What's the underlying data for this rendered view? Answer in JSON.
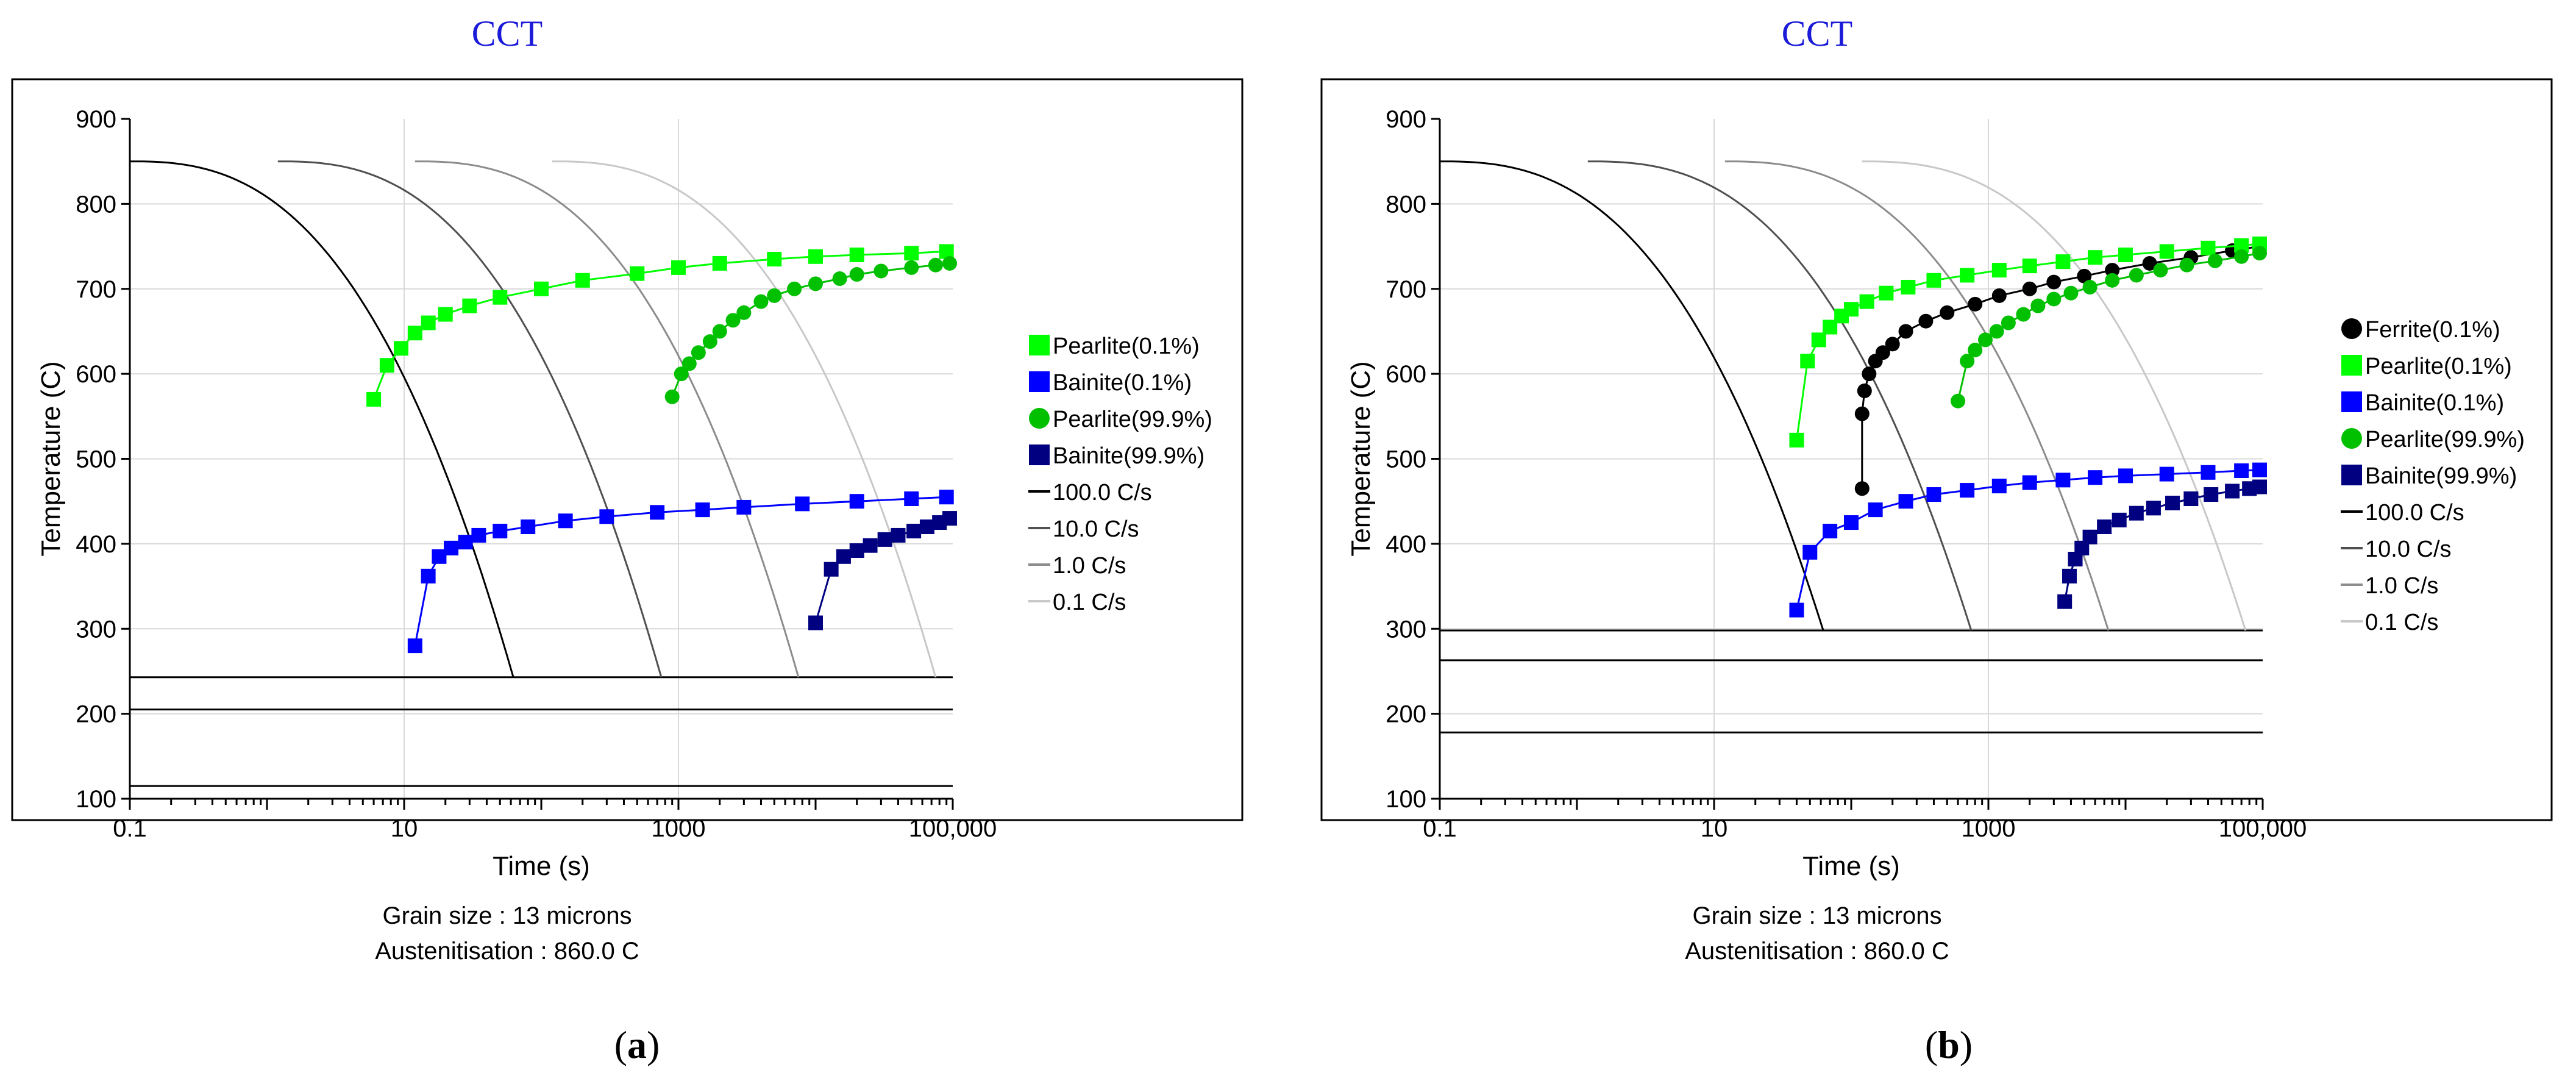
{
  "chart_data": [
    {
      "type": "line",
      "panel_label": "a",
      "title": "CCT",
      "xlabel": "Time (s)",
      "ylabel": "Temperature (C)",
      "x_scale": "log",
      "xlim": [
        0.1,
        100000
      ],
      "ylim": [
        100,
        900
      ],
      "x_ticks": [
        {
          "value": 0.1,
          "label": "0.1"
        },
        {
          "value": 10,
          "label": "10"
        },
        {
          "value": 1000,
          "label": "1000"
        },
        {
          "value": 100000,
          "label": "100,000"
        }
      ],
      "y_ticks": [
        {
          "value": 100,
          "label": "100"
        },
        {
          "value": 200,
          "label": "200"
        },
        {
          "value": 300,
          "label": "300"
        },
        {
          "value": 400,
          "label": "400"
        },
        {
          "value": 500,
          "label": "500"
        },
        {
          "value": 600,
          "label": "600"
        },
        {
          "value": 700,
          "label": "700"
        },
        {
          "value": 800,
          "label": "800"
        },
        {
          "value": 900,
          "label": "900"
        }
      ],
      "grid": true,
      "legend_position": "right",
      "footer": [
        "Grain size : 13 microns",
        "Austenitisation : 860.0 C"
      ],
      "transformation_series": [
        {
          "name": "Pearlite(0.1%)",
          "color": "#00ff00",
          "marker": "square",
          "x": [
            6,
            7.5,
            9.5,
            12,
            15,
            20,
            30,
            50,
            100,
            200,
            500,
            1000,
            2000,
            5000,
            10000,
            20000,
            50000,
            90000
          ],
          "y": [
            570,
            610,
            630,
            648,
            660,
            670,
            680,
            690,
            700,
            710,
            718,
            725,
            730,
            735,
            738,
            740,
            742,
            744
          ]
        },
        {
          "name": "Bainite(0.1%)",
          "color": "#0000ff",
          "marker": "square",
          "x": [
            12,
            15,
            18,
            22,
            28,
            35,
            50,
            80,
            150,
            300,
            700,
            1500,
            3000,
            8000,
            20000,
            50000,
            90000
          ],
          "y": [
            280,
            362,
            385,
            395,
            402,
            410,
            415,
            420,
            427,
            432,
            437,
            440,
            443,
            447,
            450,
            453,
            455
          ]
        },
        {
          "name": "Pearlite(99.9%)",
          "color": "#00c000",
          "marker": "circle",
          "x": [
            900,
            1050,
            1200,
            1400,
            1700,
            2000,
            2500,
            3000,
            4000,
            5000,
            7000,
            10000,
            15000,
            20000,
            30000,
            50000,
            75000,
            95000
          ],
          "y": [
            573,
            600,
            612,
            625,
            638,
            650,
            663,
            672,
            685,
            692,
            700,
            706,
            712,
            717,
            721,
            725,
            728,
            730
          ]
        },
        {
          "name": "Bainite(99.9%)",
          "color": "#000080",
          "marker": "square",
          "x": [
            10000,
            13000,
            16000,
            20000,
            25000,
            32000,
            40000,
            52000,
            65000,
            80000,
            95000
          ],
          "y": [
            307,
            370,
            385,
            392,
            398,
            405,
            410,
            415,
            420,
            425,
            430
          ]
        }
      ],
      "cooling_rates": [
        {
          "name": "100.0 C/s",
          "color": "#000000",
          "start_time": 0.1
        },
        {
          "name": "10.0 C/s",
          "color": "#505050",
          "start_time": 1.2
        },
        {
          "name": "1.0 C/s",
          "color": "#8c8c8c",
          "start_time": 12
        },
        {
          "name": "0.1 C/s",
          "color": "#c8c8c8",
          "start_time": 120
        }
      ],
      "cooling_start_temp": 850,
      "cooling_end_temp": 243,
      "horizontal_lines": [
        243,
        205,
        115
      ]
    },
    {
      "type": "line",
      "panel_label": "b",
      "title": "CCT",
      "xlabel": "Time (s)",
      "ylabel": "Temperature (C)",
      "x_scale": "log",
      "xlim": [
        0.1,
        100000
      ],
      "ylim": [
        100,
        900
      ],
      "x_ticks": [
        {
          "value": 0.1,
          "label": "0.1"
        },
        {
          "value": 10,
          "label": "10"
        },
        {
          "value": 1000,
          "label": "1000"
        },
        {
          "value": 100000,
          "label": "100,000"
        }
      ],
      "y_ticks": [
        {
          "value": 100,
          "label": "100"
        },
        {
          "value": 200,
          "label": "200"
        },
        {
          "value": 300,
          "label": "300"
        },
        {
          "value": 400,
          "label": "400"
        },
        {
          "value": 500,
          "label": "500"
        },
        {
          "value": 600,
          "label": "600"
        },
        {
          "value": 700,
          "label": "700"
        },
        {
          "value": 800,
          "label": "800"
        },
        {
          "value": 900,
          "label": "900"
        }
      ],
      "grid": true,
      "legend_position": "right",
      "footer": [
        "Grain size : 13 microns",
        "Austenitisation : 860.0 C"
      ],
      "transformation_series": [
        {
          "name": "Ferrite(0.1%)",
          "color": "#000000",
          "marker": "circle",
          "x": [
            120,
            120,
            125,
            135,
            150,
            170,
            200,
            250,
            350,
            500,
            800,
            1200,
            2000,
            3000,
            5000,
            8000,
            15000,
            30000,
            60000,
            95000
          ],
          "y": [
            465,
            553,
            580,
            600,
            615,
            625,
            635,
            650,
            662,
            672,
            682,
            692,
            700,
            708,
            715,
            722,
            730,
            737,
            745,
            750
          ]
        },
        {
          "name": "Pearlite(0.1%)",
          "color": "#00ff00",
          "marker": "square",
          "x": [
            40,
            48,
            58,
            70,
            85,
            100,
            130,
            180,
            260,
            400,
            700,
            1200,
            2000,
            3500,
            6000,
            10000,
            20000,
            40000,
            70000,
            95000
          ],
          "y": [
            522,
            615,
            640,
            655,
            668,
            676,
            685,
            695,
            702,
            710,
            716,
            722,
            727,
            732,
            737,
            740,
            744,
            748,
            751,
            753
          ]
        },
        {
          "name": "Bainite(0.1%)",
          "color": "#0000ff",
          "marker": "square",
          "x": [
            40,
            50,
            70,
            100,
            150,
            250,
            400,
            700,
            1200,
            2000,
            3500,
            6000,
            10000,
            20000,
            40000,
            70000,
            95000
          ],
          "y": [
            322,
            390,
            415,
            425,
            440,
            450,
            458,
            463,
            468,
            472,
            475,
            478,
            480,
            482,
            484,
            486,
            487
          ]
        },
        {
          "name": "Pearlite(99.9%)",
          "color": "#00c000",
          "marker": "circle",
          "x": [
            600,
            700,
            800,
            950,
            1150,
            1400,
            1800,
            2300,
            3000,
            4000,
            5500,
            8000,
            12000,
            18000,
            28000,
            45000,
            70000,
            95000
          ],
          "y": [
            568,
            615,
            628,
            640,
            650,
            660,
            670,
            680,
            688,
            695,
            702,
            710,
            716,
            722,
            728,
            733,
            738,
            742
          ]
        },
        {
          "name": "Bainite(99.9%)",
          "color": "#000080",
          "marker": "square",
          "x": [
            3600,
            3900,
            4300,
            4800,
            5500,
            7000,
            9000,
            12000,
            16000,
            22000,
            30000,
            42000,
            60000,
            80000,
            95000
          ],
          "y": [
            332,
            362,
            382,
            395,
            408,
            420,
            428,
            436,
            442,
            448,
            453,
            458,
            462,
            465,
            467
          ]
        }
      ],
      "cooling_rates": [
        {
          "name": "100.0 C/s",
          "color": "#000000",
          "start_time": 0.1
        },
        {
          "name": "10.0 C/s",
          "color": "#505050",
          "start_time": 1.2
        },
        {
          "name": "1.0 C/s",
          "color": "#8c8c8c",
          "start_time": 12
        },
        {
          "name": "0.1 C/s",
          "color": "#c8c8c8",
          "start_time": 120
        }
      ],
      "cooling_start_temp": 850,
      "cooling_end_temp": 298,
      "horizontal_lines": [
        298,
        263,
        178
      ]
    }
  ]
}
